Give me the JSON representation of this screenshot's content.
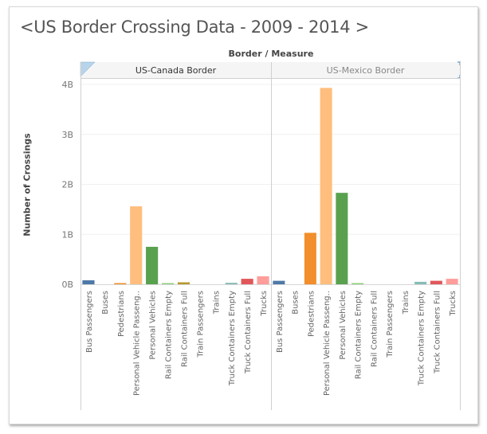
{
  "title": "<US Border Crossing Data - 2009 - 2014 >",
  "column_header": "Border / Measure",
  "chart_data": {
    "type": "bar",
    "title": "<US Border Crossing Data - 2009 - 2014 >",
    "xlabel": "Border / Measure",
    "ylabel": "Number of Crossings",
    "ylim": [
      0,
      4
    ],
    "y_unit": "billions",
    "yticks": [
      0,
      1,
      2,
      3,
      4
    ],
    "ytick_labels": [
      "0B",
      "1B",
      "2B",
      "3B",
      "4B"
    ],
    "grid": true,
    "legend": "none",
    "categories": [
      "Bus Passengers",
      "Buses",
      "Pedestrians",
      "Personal Vehicle Passengers",
      "Personal Vehicles",
      "Rail Containers Empty",
      "Rail Containers Full",
      "Train Passengers",
      "Trains",
      "Truck Containers Empty",
      "Truck Containers Full",
      "Trucks"
    ],
    "category_labels": [
      "Bus Passengers",
      "Buses",
      "Pedestrians",
      "Personal Vehicle Passeng..",
      "Personal Vehicles",
      "Rail Containers Empty",
      "Rail Containers Full",
      "Train Passengers",
      "Trains",
      "Truck Containers Empty",
      "Truck Containers Full",
      "Trucks"
    ],
    "colors": [
      "#4e79a7",
      "#a0cbe8",
      "#f28e2b",
      "#ffbe7d",
      "#59a14f",
      "#8cd17d",
      "#b6992d",
      "#f1ce63",
      "#499894",
      "#86bcb6",
      "#e15759",
      "#ff9d9a"
    ],
    "panels": [
      {
        "name": "US-Canada Border",
        "values": [
          0.08,
          0.0,
          0.02,
          1.56,
          0.75,
          0.02,
          0.04,
          0.0,
          0.0,
          0.03,
          0.11,
          0.16
        ]
      },
      {
        "name": "US-Mexico Border",
        "values": [
          0.07,
          0.0,
          1.03,
          3.93,
          1.83,
          0.01,
          0.0,
          0.0,
          0.0,
          0.05,
          0.07,
          0.11
        ]
      }
    ]
  }
}
